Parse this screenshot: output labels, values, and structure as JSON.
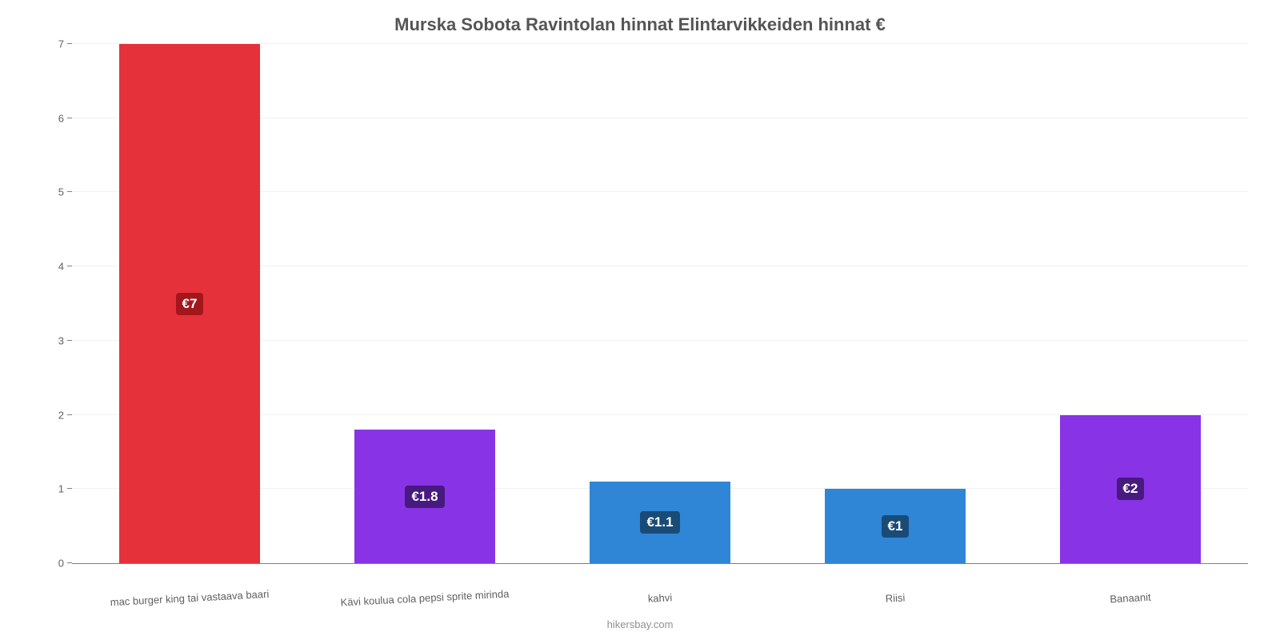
{
  "chart": {
    "type": "bar",
    "title": "Murska Sobota Ravintolan hinnat Elintarvikkeiden hinnat €",
    "title_fontsize": 22,
    "title_color": "#555555",
    "background_color": "#ffffff",
    "grid_color": "#f1f1f1",
    "axis_color": "#808080",
    "tick_label_color": "#606060",
    "ymin": 0,
    "ymax": 7,
    "ytick_step": 1,
    "bar_width_pct": 60,
    "value_label_fontsize": 17,
    "yticks": [
      {
        "v": 0,
        "label": "0"
      },
      {
        "v": 1,
        "label": "1"
      },
      {
        "v": 2,
        "label": "2"
      },
      {
        "v": 3,
        "label": "3"
      },
      {
        "v": 4,
        "label": "4"
      },
      {
        "v": 5,
        "label": "5"
      },
      {
        "v": 6,
        "label": "6"
      },
      {
        "v": 7,
        "label": "7"
      }
    ],
    "categories": [
      "mac burger king tai vastaava baari",
      "Kävi koulua cola pepsi sprite mirinda",
      "kahvi",
      "Riisi",
      "Banaanit"
    ],
    "values": [
      7,
      1.8,
      1.1,
      1,
      2
    ],
    "value_labels": [
      "€7",
      "€1.8",
      "€1.1",
      "€1",
      "€2"
    ],
    "bar_colors": [
      "#e5313a",
      "#8933e6",
      "#2f86d6",
      "#2f86d6",
      "#8933e6"
    ],
    "badge_colors": [
      "#a3161c",
      "#471a7f",
      "#1a4b77",
      "#1a4b77",
      "#471a7f"
    ]
  },
  "footer": {
    "text": "hikersbay.com",
    "color": "#909090"
  }
}
